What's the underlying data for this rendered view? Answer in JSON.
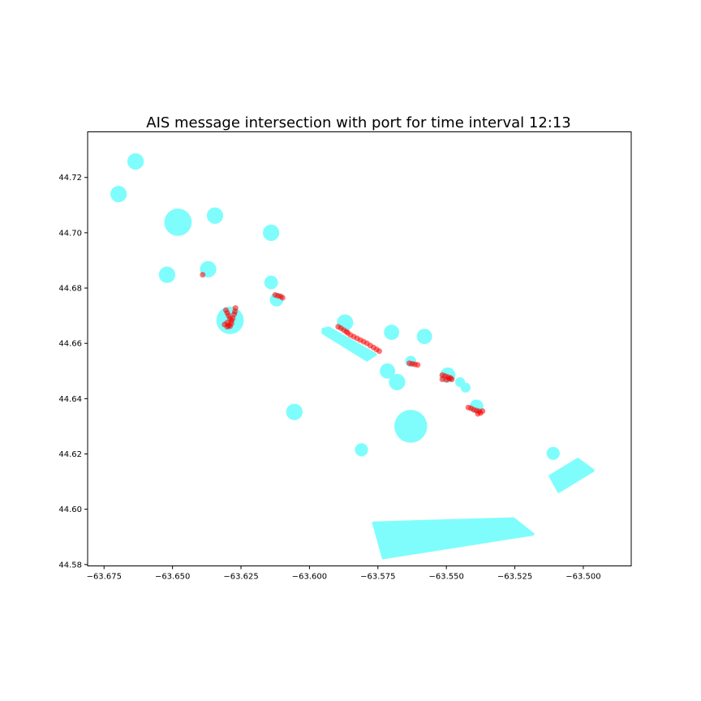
{
  "chart_data": {
    "type": "scatter",
    "title": "AIS message intersection with port for time interval 12:13",
    "xlabel": "",
    "ylabel": "",
    "xlim": [
      -63.681,
      -63.4825
    ],
    "ylim": [
      44.5795,
      44.7365
    ],
    "xticks": [
      -63.675,
      -63.65,
      -63.625,
      -63.6,
      -63.575,
      -63.55,
      -63.525,
      -63.5
    ],
    "xtick_labels": [
      "−63.675",
      "−63.650",
      "−63.625",
      "−63.600",
      "−63.575",
      "−63.550",
      "−63.525",
      "−63.500"
    ],
    "yticks": [
      44.58,
      44.6,
      44.62,
      44.64,
      44.66,
      44.68,
      44.7,
      44.72
    ],
    "ytick_labels": [
      "44.58",
      "44.60",
      "44.62",
      "44.64",
      "44.66",
      "44.68",
      "44.70",
      "44.72"
    ],
    "grid": false,
    "port_color": "#7ffdfd",
    "ais_color": "#ff0000",
    "port_circles": [
      {
        "lon": -63.6635,
        "lat": 44.7258,
        "r": 0.003
      },
      {
        "lon": -63.6697,
        "lat": 44.714,
        "r": 0.003
      },
      {
        "lon": -63.648,
        "lat": 44.7038,
        "r": 0.005
      },
      {
        "lon": -63.6345,
        "lat": 44.7062,
        "r": 0.003
      },
      {
        "lon": -63.614,
        "lat": 44.7,
        "r": 0.003
      },
      {
        "lon": -63.652,
        "lat": 44.6848,
        "r": 0.003
      },
      {
        "lon": -63.637,
        "lat": 44.6868,
        "r": 0.003
      },
      {
        "lon": -63.614,
        "lat": 44.682,
        "r": 0.0025
      },
      {
        "lon": -63.612,
        "lat": 44.6758,
        "r": 0.0025
      },
      {
        "lon": -63.629,
        "lat": 44.6683,
        "r": 0.005
      },
      {
        "lon": -63.587,
        "lat": 44.6675,
        "r": 0.003
      },
      {
        "lon": -63.57,
        "lat": 44.664,
        "r": 0.0028
      },
      {
        "lon": -63.558,
        "lat": 44.6625,
        "r": 0.0028
      },
      {
        "lon": -63.563,
        "lat": 44.6535,
        "r": 0.002
      },
      {
        "lon": -63.5715,
        "lat": 44.65,
        "r": 0.0028
      },
      {
        "lon": -63.568,
        "lat": 44.646,
        "r": 0.003
      },
      {
        "lon": -63.5495,
        "lat": 44.6485,
        "r": 0.0028
      },
      {
        "lon": -63.545,
        "lat": 44.646,
        "r": 0.0018
      },
      {
        "lon": -63.543,
        "lat": 44.644,
        "r": 0.0018
      },
      {
        "lon": -63.539,
        "lat": 44.6372,
        "r": 0.0025
      },
      {
        "lon": -63.6055,
        "lat": 44.6352,
        "r": 0.003
      },
      {
        "lon": -63.563,
        "lat": 44.63,
        "r": 0.006
      },
      {
        "lon": -63.581,
        "lat": 44.6215,
        "r": 0.0024
      },
      {
        "lon": -63.511,
        "lat": 44.6202,
        "r": 0.0024
      }
    ],
    "port_polygons": [
      [
        [
          -63.595,
          44.665
        ],
        [
          -63.593,
          44.6655
        ],
        [
          -63.576,
          44.656
        ],
        [
          -63.579,
          44.654
        ],
        [
          -63.595,
          44.6638
        ]
      ],
      [
        [
          -63.512,
          44.612
        ],
        [
          -63.502,
          44.618
        ],
        [
          -63.4965,
          44.614
        ],
        [
          -63.509,
          44.6065
        ]
      ],
      [
        [
          -63.5765,
          44.595
        ],
        [
          -63.5255,
          44.5965
        ],
        [
          -63.5185,
          44.591
        ],
        [
          -63.573,
          44.5825
        ]
      ]
    ],
    "ais_points": [
      [
        -63.639,
        44.6848
      ],
      [
        -63.6305,
        44.672
      ],
      [
        -63.63,
        44.671
      ],
      [
        -63.6295,
        44.67
      ],
      [
        -63.629,
        44.669
      ],
      [
        -63.6285,
        44.6682
      ],
      [
        -63.63,
        44.6675
      ],
      [
        -63.631,
        44.6668
      ],
      [
        -63.6295,
        44.6665
      ],
      [
        -63.6285,
        44.6672
      ],
      [
        -63.628,
        44.669
      ],
      [
        -63.6275,
        44.6705
      ],
      [
        -63.6272,
        44.6715
      ],
      [
        -63.627,
        44.6728
      ],
      [
        -63.63,
        44.666
      ],
      [
        -63.629,
        44.6662
      ],
      [
        -63.6125,
        44.6775
      ],
      [
        -63.6115,
        44.6772
      ],
      [
        -63.6105,
        44.677
      ],
      [
        -63.6098,
        44.6765
      ],
      [
        -63.5895,
        44.666
      ],
      [
        -63.5885,
        44.6655
      ],
      [
        -63.5875,
        44.6648
      ],
      [
        -63.5865,
        44.6642
      ],
      [
        -63.586,
        44.6638
      ],
      [
        -63.585,
        44.663
      ],
      [
        -63.5838,
        44.6624
      ],
      [
        -63.5826,
        44.6618
      ],
      [
        -63.5814,
        44.6612
      ],
      [
        -63.5802,
        44.6606
      ],
      [
        -63.579,
        44.66
      ],
      [
        -63.5778,
        44.6592
      ],
      [
        -63.5766,
        44.6585
      ],
      [
        -63.5755,
        44.6578
      ],
      [
        -63.5745,
        44.6572
      ],
      [
        -63.5635,
        44.6528
      ],
      [
        -63.5625,
        44.6526
      ],
      [
        -63.5615,
        44.6524
      ],
      [
        -63.5605,
        44.6522
      ],
      [
        -63.5515,
        44.6485
      ],
      [
        -63.5505,
        44.6482
      ],
      [
        -63.5495,
        44.6478
      ],
      [
        -63.5485,
        44.6475
      ],
      [
        -63.5515,
        44.647
      ],
      [
        -63.55,
        44.6468
      ],
      [
        -63.549,
        44.6472
      ],
      [
        -63.548,
        44.647
      ],
      [
        -63.542,
        44.6368
      ],
      [
        -63.541,
        44.6365
      ],
      [
        -63.54,
        44.636
      ],
      [
        -63.539,
        44.6357
      ],
      [
        -63.538,
        44.6354
      ],
      [
        -63.5385,
        44.6345
      ],
      [
        -63.5375,
        44.6348
      ],
      [
        -63.5368,
        44.6355
      ]
    ]
  }
}
